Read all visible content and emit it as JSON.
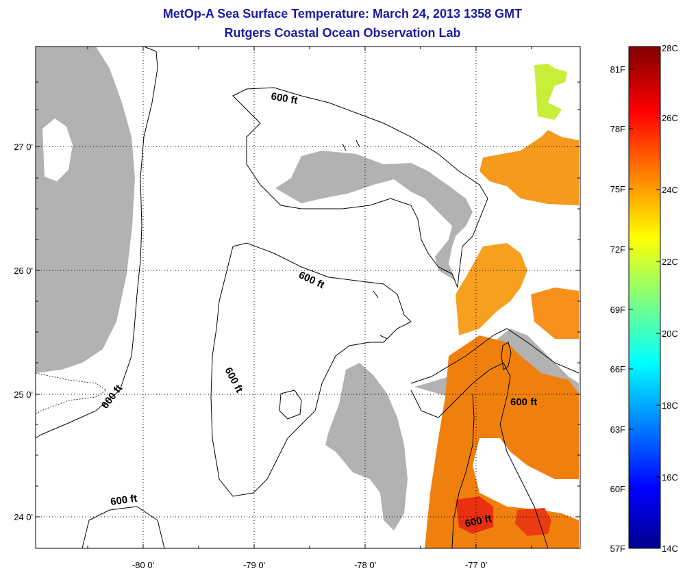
{
  "header": {
    "title": "MetOp-A Sea Surface Temperature:  March 24, 2013 1358 GMT",
    "subtitle": "Rutgers Coastal Ocean Observation Lab"
  },
  "map": {
    "lat_ticks": [
      "27 0'",
      "26 0'",
      "25 0'",
      "24 0'"
    ],
    "lon_ticks": [
      "-80 0'",
      "-79 0'",
      "-78 0'",
      "-77 0'"
    ],
    "contour_labels": [
      "600 ft",
      "600 ft",
      "600 ft",
      "600 ft",
      "600 ft",
      "600 ft"
    ],
    "colors": {
      "land": "#b2b2b2",
      "frame": "#000000",
      "grid": "#000000"
    }
  },
  "colorbar": {
    "fahrenheit_labels": [
      "81F",
      "78F",
      "75F",
      "72F",
      "69F",
      "66F",
      "63F",
      "60F",
      "57F"
    ],
    "celsius_labels": [
      "28C",
      "26C",
      "24C",
      "22C",
      "20C",
      "18C",
      "16C",
      "14C"
    ],
    "range_c": [
      14,
      28
    ],
    "colormap": "jet"
  }
}
